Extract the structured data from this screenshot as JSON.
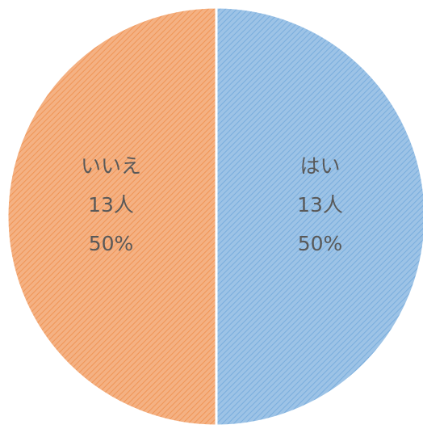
{
  "chart_data": {
    "type": "pie",
    "title": "",
    "slices": [
      {
        "label": "はい",
        "value": 13,
        "count_label": "13人",
        "percent": 50,
        "percent_label": "50%",
        "color": "#9DC3E6",
        "stripe_color": "#5B9BD5"
      },
      {
        "label": "いいえ",
        "value": 13,
        "count_label": "13人",
        "percent": 50,
        "percent_label": "50%",
        "color": "#F4B183",
        "stripe_color": "#ED7D31"
      }
    ],
    "start_angle_deg": 0,
    "direction": "clockwise",
    "pattern": "diagonal-hatch",
    "legend": "none",
    "separator_color": "#ffffff"
  }
}
